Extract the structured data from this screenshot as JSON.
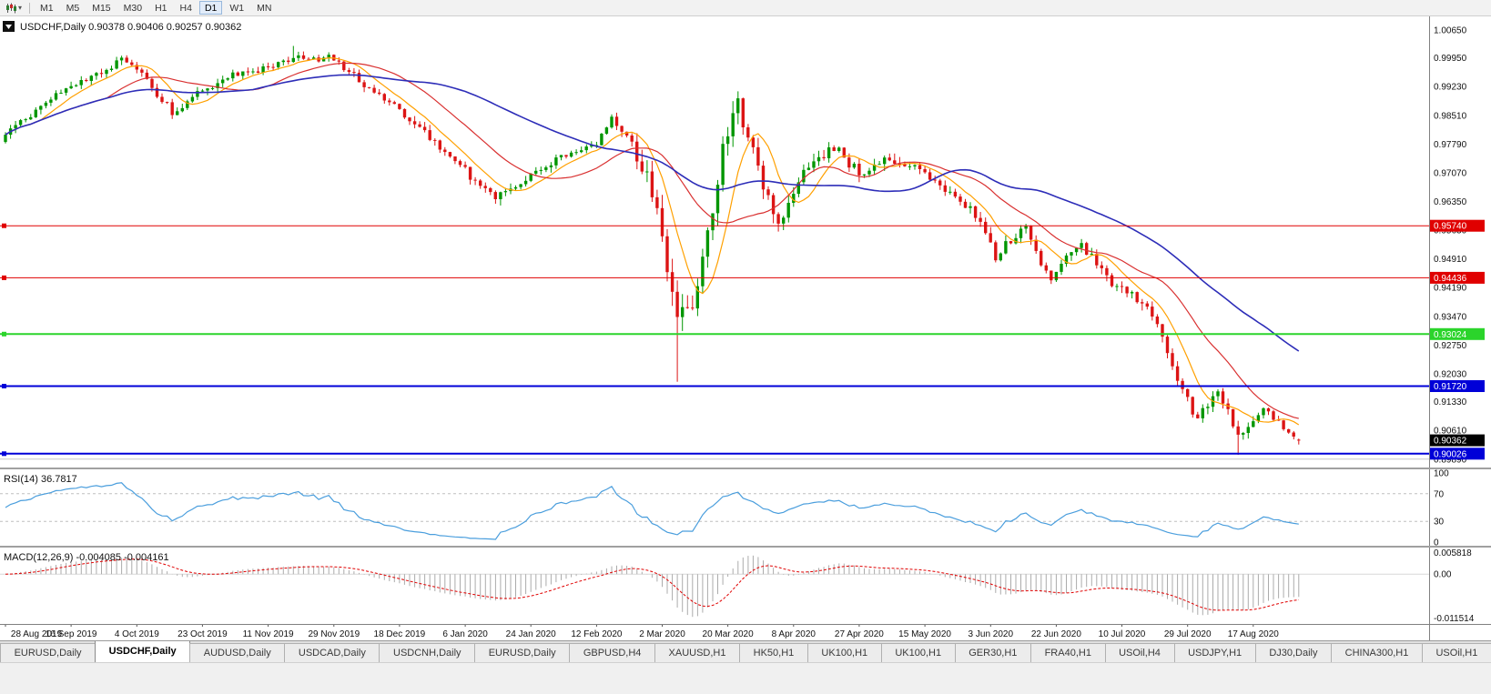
{
  "toolbar": {
    "chart_type_tooltip": "Candlestick chart",
    "timeframes": [
      "M1",
      "M5",
      "M15",
      "M30",
      "H1",
      "H4",
      "D1",
      "W1",
      "MN"
    ],
    "active_timeframe": "D1"
  },
  "chart": {
    "title": "USDCHF,Daily",
    "ohlc": {
      "open": "0.90378",
      "high": "0.90406",
      "low": "0.90257",
      "close": "0.90362"
    },
    "y_axis_labels": [
      "1.00650",
      "0.99950",
      "0.99230",
      "0.98510",
      "0.97790",
      "0.97070",
      "0.96350",
      "0.95630",
      "0.94910",
      "0.94190",
      "0.93470",
      "0.92750",
      "0.92030",
      "0.91330",
      "0.90610",
      "0.89890"
    ],
    "price_min": 0.8968,
    "price_max": 1.0099,
    "gridline": 0.8989,
    "horizontal_lines": [
      {
        "value": 0.9574,
        "label": "0.95740",
        "color": "#E00000",
        "width": 1
      },
      {
        "value": 0.94436,
        "label": "0.94436",
        "color": "#E00000",
        "width": 1
      },
      {
        "value": 0.93024,
        "label": "0.93024",
        "color": "#2BD42B",
        "width": 2
      },
      {
        "value": 0.9172,
        "label": "0.91720",
        "color": "#0000D8",
        "width": 2
      },
      {
        "value": 0.90026,
        "label": "0.90026",
        "color": "#0000D8",
        "width": 2
      }
    ],
    "current_price": {
      "value": 0.90362,
      "label": "0.90362",
      "bg": "#000000"
    }
  },
  "rsi": {
    "label": "RSI(14)",
    "value": "36.7817",
    "levels": [
      "100",
      "70",
      "30",
      "0"
    ],
    "color": "#4A9EDD"
  },
  "macd": {
    "label": "MACD(12,26,9)",
    "values": "-0.004085 -0.004161",
    "axis": [
      "0.005818",
      "0.00",
      "-0.011514"
    ],
    "histogram_color": "#ABABAB",
    "signal_color": "#E00000"
  },
  "x_axis_labels": [
    "28 Aug 2019",
    "16 Sep 2019",
    "4 Oct 2019",
    "23 Oct 2019",
    "11 Nov 2019",
    "29 Nov 2019",
    "18 Dec 2019",
    "6 Jan 2020",
    "24 Jan 2020",
    "12 Feb 2020",
    "2 Mar 2020",
    "20 Mar 2020",
    "8 Apr 2020",
    "27 Apr 2020",
    "15 May 2020",
    "3 Jun 2020",
    "22 Jun 2020",
    "10 Jul 2020",
    "29 Jul 2020",
    "17 Aug 2020"
  ],
  "tabs": {
    "active_index": 1,
    "items": [
      "EURUSD,Daily",
      "USDCHF,Daily",
      "AUDUSD,Daily",
      "USDCAD,Daily",
      "USDCNH,Daily",
      "EURUSD,Daily",
      "GBPUSD,H4",
      "XAUUSD,H1",
      "HK50,H1",
      "UK100,H1",
      "UK100,H1",
      "GER30,H1",
      "FRA40,H1",
      "USOil,H4",
      "USDJPY,H1",
      "DJ30,Daily",
      "CHINA300,H1",
      "USOil,H1"
    ]
  },
  "chart_data": {
    "type": "candlestick",
    "symbol": "USDCHF",
    "timeframe": "Daily",
    "n_bars": 257,
    "bars_per_label": 13,
    "up_color": "#009600",
    "down_color": "#DC1414",
    "close_waypoints": [
      [
        0,
        0.98
      ],
      [
        4,
        0.9845
      ],
      [
        8,
        0.988
      ],
      [
        13,
        0.993
      ],
      [
        18,
        0.9955
      ],
      [
        23,
        0.999
      ],
      [
        26,
        0.997
      ],
      [
        30,
        0.9905
      ],
      [
        33,
        0.986
      ],
      [
        36,
        0.9885
      ],
      [
        39,
        0.9915
      ],
      [
        45,
        0.995
      ],
      [
        52,
        0.9968
      ],
      [
        57,
        1.0
      ],
      [
        60,
        0.9985
      ],
      [
        64,
        0.9998
      ],
      [
        68,
        0.996
      ],
      [
        73,
        0.9905
      ],
      [
        78,
        0.9862
      ],
      [
        83,
        0.981
      ],
      [
        88,
        0.9745
      ],
      [
        91,
        0.9712
      ],
      [
        94,
        0.9668
      ],
      [
        97,
        0.9645
      ],
      [
        100,
        0.9672
      ],
      [
        104,
        0.97
      ],
      [
        108,
        0.9732
      ],
      [
        113,
        0.9758
      ],
      [
        117,
        0.9785
      ],
      [
        120,
        0.9838
      ],
      [
        123,
        0.981
      ],
      [
        125,
        0.9752
      ],
      [
        127,
        0.97
      ],
      [
        129,
        0.96
      ],
      [
        131,
        0.948
      ],
      [
        133,
        0.936
      ],
      [
        135,
        0.9345
      ],
      [
        137,
        0.942
      ],
      [
        139,
        0.955
      ],
      [
        141,
        0.97
      ],
      [
        143,
        0.982
      ],
      [
        145,
        0.9878
      ],
      [
        147,
        0.98
      ],
      [
        149,
        0.972
      ],
      [
        151,
        0.964
      ],
      [
        153,
        0.9565
      ],
      [
        155,
        0.962
      ],
      [
        158,
        0.97
      ],
      [
        161,
        0.9745
      ],
      [
        164,
        0.9775
      ],
      [
        167,
        0.973
      ],
      [
        170,
        0.97
      ],
      [
        173,
        0.9742
      ],
      [
        176,
        0.972
      ],
      [
        179,
        0.9735
      ],
      [
        182,
        0.97
      ],
      [
        185,
        0.9668
      ],
      [
        188,
        0.9648
      ],
      [
        191,
        0.9618
      ],
      [
        194,
        0.956
      ],
      [
        196,
        0.9498
      ],
      [
        199,
        0.954
      ],
      [
        202,
        0.9572
      ],
      [
        205,
        0.948
      ],
      [
        207,
        0.9435
      ],
      [
        210,
        0.9498
      ],
      [
        213,
        0.9525
      ],
      [
        216,
        0.948
      ],
      [
        218,
        0.944
      ],
      [
        221,
        0.9415
      ],
      [
        224,
        0.9395
      ],
      [
        227,
        0.934
      ],
      [
        230,
        0.926
      ],
      [
        233,
        0.9165
      ],
      [
        236,
        0.9085
      ],
      [
        238,
        0.9125
      ],
      [
        240,
        0.9168
      ],
      [
        242,
        0.911
      ],
      [
        244,
        0.9045
      ],
      [
        246,
        0.9072
      ],
      [
        248,
        0.9105
      ],
      [
        250,
        0.9112
      ],
      [
        252,
        0.908
      ],
      [
        254,
        0.9052
      ],
      [
        256,
        0.9036
      ]
    ],
    "volatility_waypoints": [
      [
        0,
        0.0016
      ],
      [
        60,
        0.0016
      ],
      [
        90,
        0.0018
      ],
      [
        120,
        0.0018
      ],
      [
        126,
        0.004
      ],
      [
        136,
        0.0052
      ],
      [
        146,
        0.004
      ],
      [
        155,
        0.0026
      ],
      [
        190,
        0.0022
      ],
      [
        210,
        0.0018
      ],
      [
        228,
        0.0026
      ],
      [
        240,
        0.0022
      ],
      [
        256,
        0.0013
      ]
    ],
    "wick_overrides": [
      {
        "i": 57,
        "high": 1.0025
      },
      {
        "i": 98,
        "low": 0.9625
      },
      {
        "i": 133,
        "low": 0.9183
      },
      {
        "i": 145,
        "high": 0.9905
      },
      {
        "i": 244,
        "low": 0.9
      }
    ],
    "moving_averages": [
      {
        "name": "fast",
        "period": 8,
        "color": "#FFA000"
      },
      {
        "name": "medium",
        "period": 21,
        "color": "#D93030"
      },
      {
        "name": "slow",
        "period": 50,
        "color": "#2D2DB8"
      }
    ],
    "rsi_period": 14,
    "macd_params": {
      "fast": 12,
      "slow": 26,
      "signal": 9
    },
    "macd_scale": {
      "max": 0.005818,
      "min": -0.011514
    }
  }
}
